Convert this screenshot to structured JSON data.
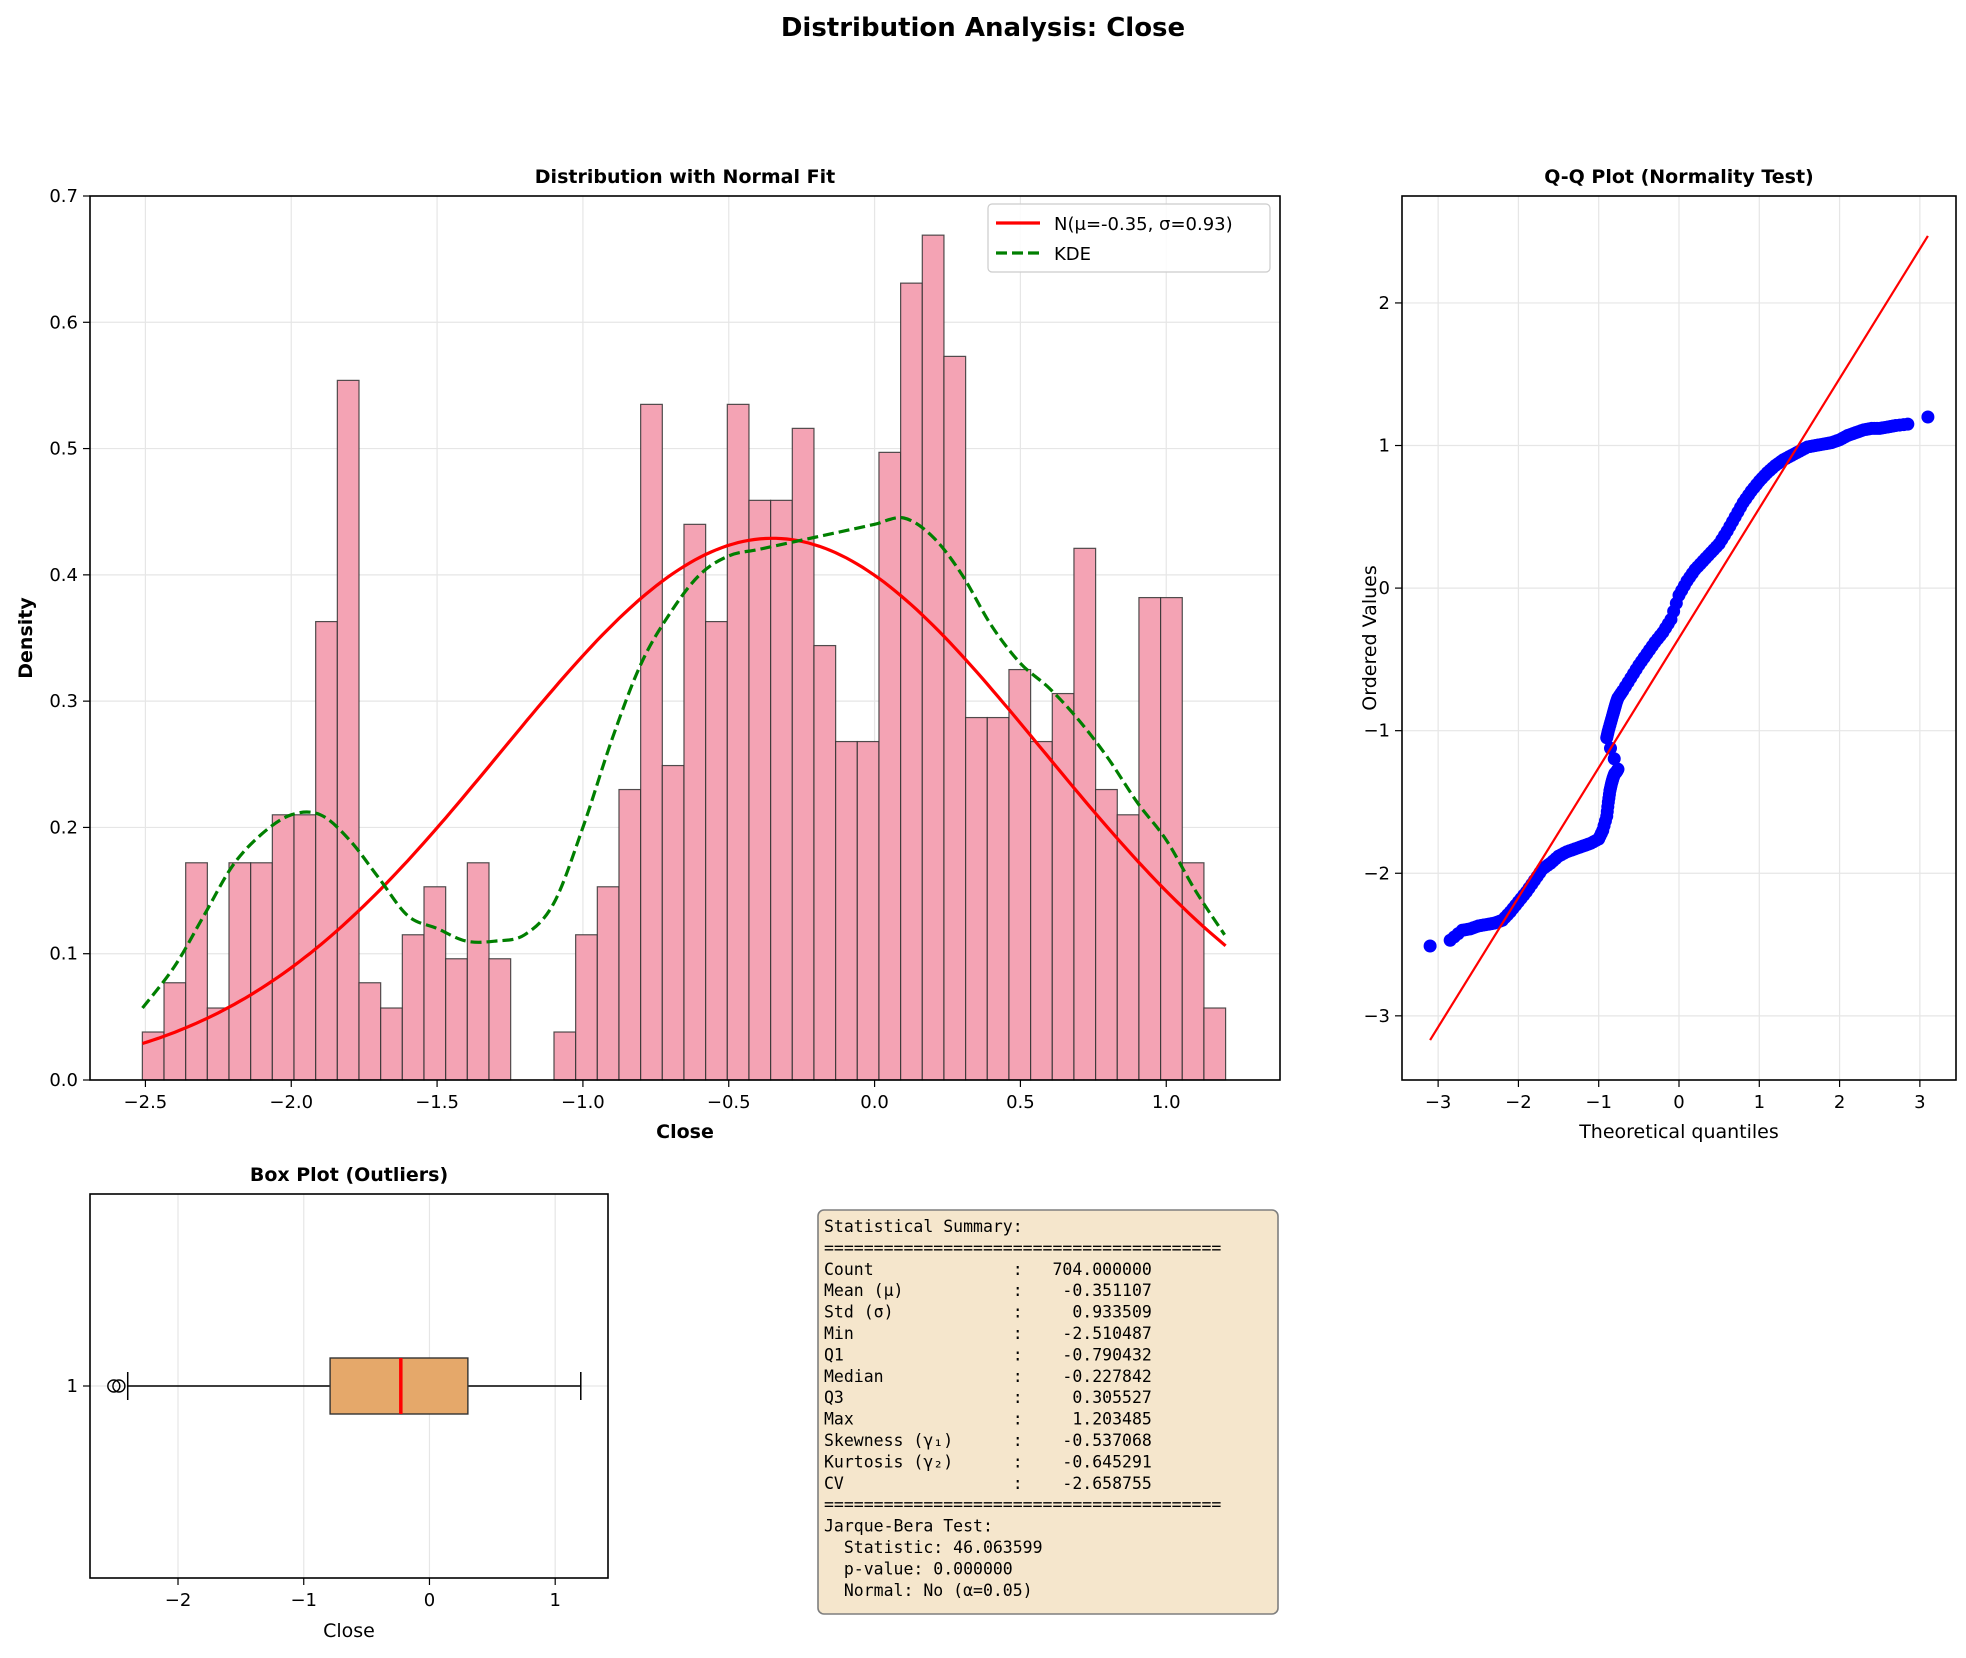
{
  "suptitle": "Distribution Analysis: Close",
  "chart_data": [
    {
      "id": "hist",
      "type": "bar",
      "title": "Distribution with Normal Fit",
      "xlabel": "Close",
      "ylabel": "Density",
      "xlim": [
        -2.69,
        1.39
      ],
      "ylim": [
        0,
        0.7
      ],
      "xticks": [
        -2.5,
        -2.0,
        -1.5,
        -1.0,
        -0.5,
        0.0,
        0.5,
        1.0
      ],
      "xtick_labels": [
        "−2.5",
        "−2.0",
        "−1.5",
        "−1.0",
        "−0.5",
        "0.0",
        "0.5",
        "1.0"
      ],
      "yticks": [
        0.0,
        0.1,
        0.2,
        0.3,
        0.4,
        0.5,
        0.6,
        0.7
      ],
      "ytick_labels": [
        "0.0",
        "0.1",
        "0.2",
        "0.3",
        "0.4",
        "0.5",
        "0.6",
        "0.7"
      ],
      "grid": true,
      "legend_position": "top-right",
      "bin_start": -2.510487,
      "bin_end": 1.203485,
      "bar_color": "#f4a3b4",
      "values": [
        0.038,
        0.077,
        0.172,
        0.057,
        0.172,
        0.172,
        0.21,
        0.21,
        0.363,
        0.554,
        0.077,
        0.057,
        0.115,
        0.153,
        0.096,
        0.172,
        0.096,
        0,
        0,
        0.038,
        0.115,
        0.153,
        0.23,
        0.535,
        0.249,
        0.44,
        0.363,
        0.535,
        0.459,
        0.459,
        0.516,
        0.344,
        0.268,
        0.268,
        0.497,
        0.631,
        0.669,
        0.573,
        0.287,
        0.287,
        0.325,
        0.268,
        0.306,
        0.421,
        0.23,
        0.21,
        0.382,
        0.382,
        0.172,
        0.057
      ],
      "series": [
        {
          "name": "N(μ=-0.35, σ=0.93)",
          "kind": "normal_pdf",
          "mu": -0.35,
          "sigma": 0.93,
          "color": "#ff0000",
          "style": "solid"
        },
        {
          "name": "KDE",
          "kind": "line",
          "color": "#007f00",
          "style": "dashed",
          "x": [
            -2.51,
            -2.4,
            -2.3,
            -2.2,
            -2.1,
            -2.0,
            -1.9,
            -1.8,
            -1.7,
            -1.6,
            -1.5,
            -1.4,
            -1.3,
            -1.2,
            -1.1,
            -1.0,
            -0.9,
            -0.8,
            -0.7,
            -0.6,
            -0.5,
            -0.4,
            -0.3,
            -0.2,
            -0.1,
            0.0,
            0.1,
            0.2,
            0.3,
            0.4,
            0.5,
            0.6,
            0.7,
            0.8,
            0.9,
            1.0,
            1.1,
            1.2
          ],
          "y": [
            0.057,
            0.09,
            0.13,
            0.17,
            0.195,
            0.21,
            0.21,
            0.19,
            0.16,
            0.13,
            0.12,
            0.11,
            0.11,
            0.115,
            0.14,
            0.2,
            0.27,
            0.33,
            0.37,
            0.4,
            0.415,
            0.42,
            0.425,
            0.43,
            0.435,
            0.44,
            0.445,
            0.43,
            0.4,
            0.36,
            0.33,
            0.31,
            0.285,
            0.255,
            0.22,
            0.19,
            0.15,
            0.115
          ]
        }
      ]
    },
    {
      "id": "qq",
      "type": "scatter",
      "title": "Q-Q Plot (Normality Test)",
      "xlabel": "Theoretical quantiles",
      "ylabel": "Ordered Values",
      "xlim": [
        -3.45,
        3.45
      ],
      "ylim": [
        -3.45,
        2.75
      ],
      "xticks": [
        -3,
        -2,
        -1,
        0,
        1,
        2,
        3
      ],
      "xtick_labels": [
        "−3",
        "−2",
        "−1",
        "0",
        "1",
        "2",
        "3"
      ],
      "yticks": [
        -3,
        -2,
        -1,
        0,
        1,
        2
      ],
      "ytick_labels": [
        "−3",
        "−2",
        "−1",
        "0",
        "1",
        "2"
      ],
      "grid": true,
      "point_color": "#0000ff",
      "line_color": "#ff0000",
      "fit_line": {
        "x": [
          -3.1,
          3.1
        ],
        "y": [
          -3.17,
          2.47
        ]
      },
      "x": [
        -3.1,
        -2.85,
        -2.7,
        -2.6,
        -2.5,
        -2.4,
        -2.3,
        -2.2,
        -2.1,
        -2.0,
        -1.9,
        -1.8,
        -1.7,
        -1.6,
        -1.5,
        -1.4,
        -1.3,
        -1.2,
        -1.1,
        -1.0,
        -0.95,
        -0.9,
        -0.88,
        -0.86,
        -0.84,
        -0.82,
        -0.8,
        -0.78,
        -0.76,
        -0.9,
        -0.88,
        -0.85,
        -0.82,
        -0.8,
        -0.78,
        -0.76,
        -0.7,
        -0.6,
        -0.5,
        -0.4,
        -0.3,
        -0.2,
        -0.1,
        0.0,
        0.1,
        0.2,
        0.3,
        0.4,
        0.5,
        0.6,
        0.7,
        0.8,
        0.9,
        1.0,
        1.1,
        1.2,
        1.3,
        1.4,
        1.5,
        1.6,
        1.7,
        1.8,
        1.9,
        2.0,
        2.1,
        2.2,
        2.3,
        2.4,
        2.5,
        2.6,
        2.7,
        2.85,
        3.1
      ],
      "y": [
        -2.51,
        -2.47,
        -2.4,
        -2.39,
        -2.37,
        -2.36,
        -2.35,
        -2.33,
        -2.27,
        -2.2,
        -2.13,
        -2.05,
        -1.97,
        -1.93,
        -1.88,
        -1.85,
        -1.83,
        -1.81,
        -1.79,
        -1.76,
        -1.7,
        -1.6,
        -1.5,
        -1.42,
        -1.37,
        -1.33,
        -1.3,
        -1.29,
        -1.27,
        -1.05,
        -1.0,
        -0.94,
        -0.88,
        -0.84,
        -0.8,
        -0.77,
        -0.72,
        -0.63,
        -0.54,
        -0.46,
        -0.38,
        -0.31,
        -0.22,
        -0.05,
        0.05,
        0.13,
        0.19,
        0.25,
        0.31,
        0.4,
        0.5,
        0.6,
        0.68,
        0.75,
        0.81,
        0.86,
        0.9,
        0.93,
        0.96,
        0.99,
        1.0,
        1.01,
        1.02,
        1.04,
        1.07,
        1.09,
        1.11,
        1.12,
        1.12,
        1.13,
        1.14,
        1.15,
        1.2
      ]
    },
    {
      "id": "box",
      "type": "box",
      "title": "Box Plot (Outliers)",
      "xlabel": "Close",
      "xlim": [
        -2.7,
        1.42
      ],
      "xticks": [
        -2,
        -1,
        0,
        1
      ],
      "xtick_labels": [
        "−2",
        "−1",
        "0",
        "1"
      ],
      "ytick_label": "1",
      "grid": true,
      "q1": -0.790432,
      "median": -0.227842,
      "q3": 0.305527,
      "whisker_low": -2.4,
      "whisker_high": 1.203485,
      "outliers": [
        -2.510487,
        -2.47
      ],
      "box_color": "#e5a86a",
      "median_color": "#ff0000"
    }
  ],
  "summary": {
    "lines": [
      "Statistical Summary:",
      "========================================",
      "Count              :   704.000000",
      "Mean (μ)           :    -0.351107",
      "Std (σ)            :     0.933509",
      "Min                :    -2.510487",
      "Q1                 :    -0.790432",
      "Median             :    -0.227842",
      "Q3                 :     0.305527",
      "Max                :     1.203485",
      "Skewness (γ₁)      :    -0.537068",
      "Kurtosis (γ₂)      :    -0.645291",
      "CV                 :    -2.658755",
      "========================================",
      "Jarque-Bera Test:",
      "  Statistic: 46.063599",
      "  p-value: 0.000000",
      "  Normal: No (α=0.05)"
    ],
    "bg_color": "#f5e6cc",
    "border_color": "#7f7f7f"
  }
}
